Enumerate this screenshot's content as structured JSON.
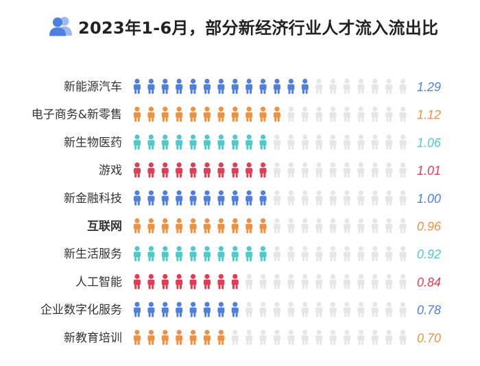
{
  "title": "2023年1-6月，部分新经济行业人才流入流出比",
  "colors": {
    "blue": "#4f7fe0",
    "orange": "#ef9140",
    "teal": "#4fc9c9",
    "red": "#df3f55",
    "empty": "#e6e6e6",
    "highlight_label": "#e0485a"
  },
  "chart_data": {
    "type": "bar",
    "style": "pictograph",
    "orientation": "horizontal",
    "icons_per_row": 20,
    "title": "2023年1-6月，部分新经济行业人才流入流出比",
    "categories": [
      "新能源汽车",
      "电子商务&新零售",
      "新生物医药",
      "游戏",
      "新金融科技",
      "互联网",
      "新生活服务",
      "人工智能",
      "企业数字化服务",
      "新教育培训"
    ],
    "values": [
      1.29,
      1.12,
      1.06,
      1.01,
      1.0,
      0.96,
      0.92,
      0.84,
      0.78,
      0.7
    ],
    "value_labels": [
      "1.29",
      "1.12",
      "1.06",
      "1.01",
      "1.00",
      "0.96",
      "0.92",
      "0.84",
      "0.78",
      "0.70"
    ],
    "filled_icons": [
      13,
      11,
      10,
      10,
      10,
      10,
      10,
      8,
      8,
      7
    ],
    "row_colors": [
      "blue",
      "orange",
      "teal",
      "red",
      "blue",
      "orange",
      "teal",
      "red",
      "blue",
      "orange"
    ],
    "highlight_category": "互联网"
  }
}
